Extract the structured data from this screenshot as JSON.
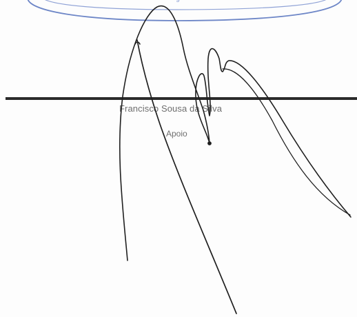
{
  "signature_block": {
    "name": "Francisco Sousa da Silva",
    "role": "Apoio"
  },
  "colors": {
    "paper": "#fdfdfd",
    "stamp_ink": "#6d86c7",
    "signature_ink": "#1f1f1f",
    "rule": "#2a2a2a",
    "print_text": "#6e6e6e"
  }
}
